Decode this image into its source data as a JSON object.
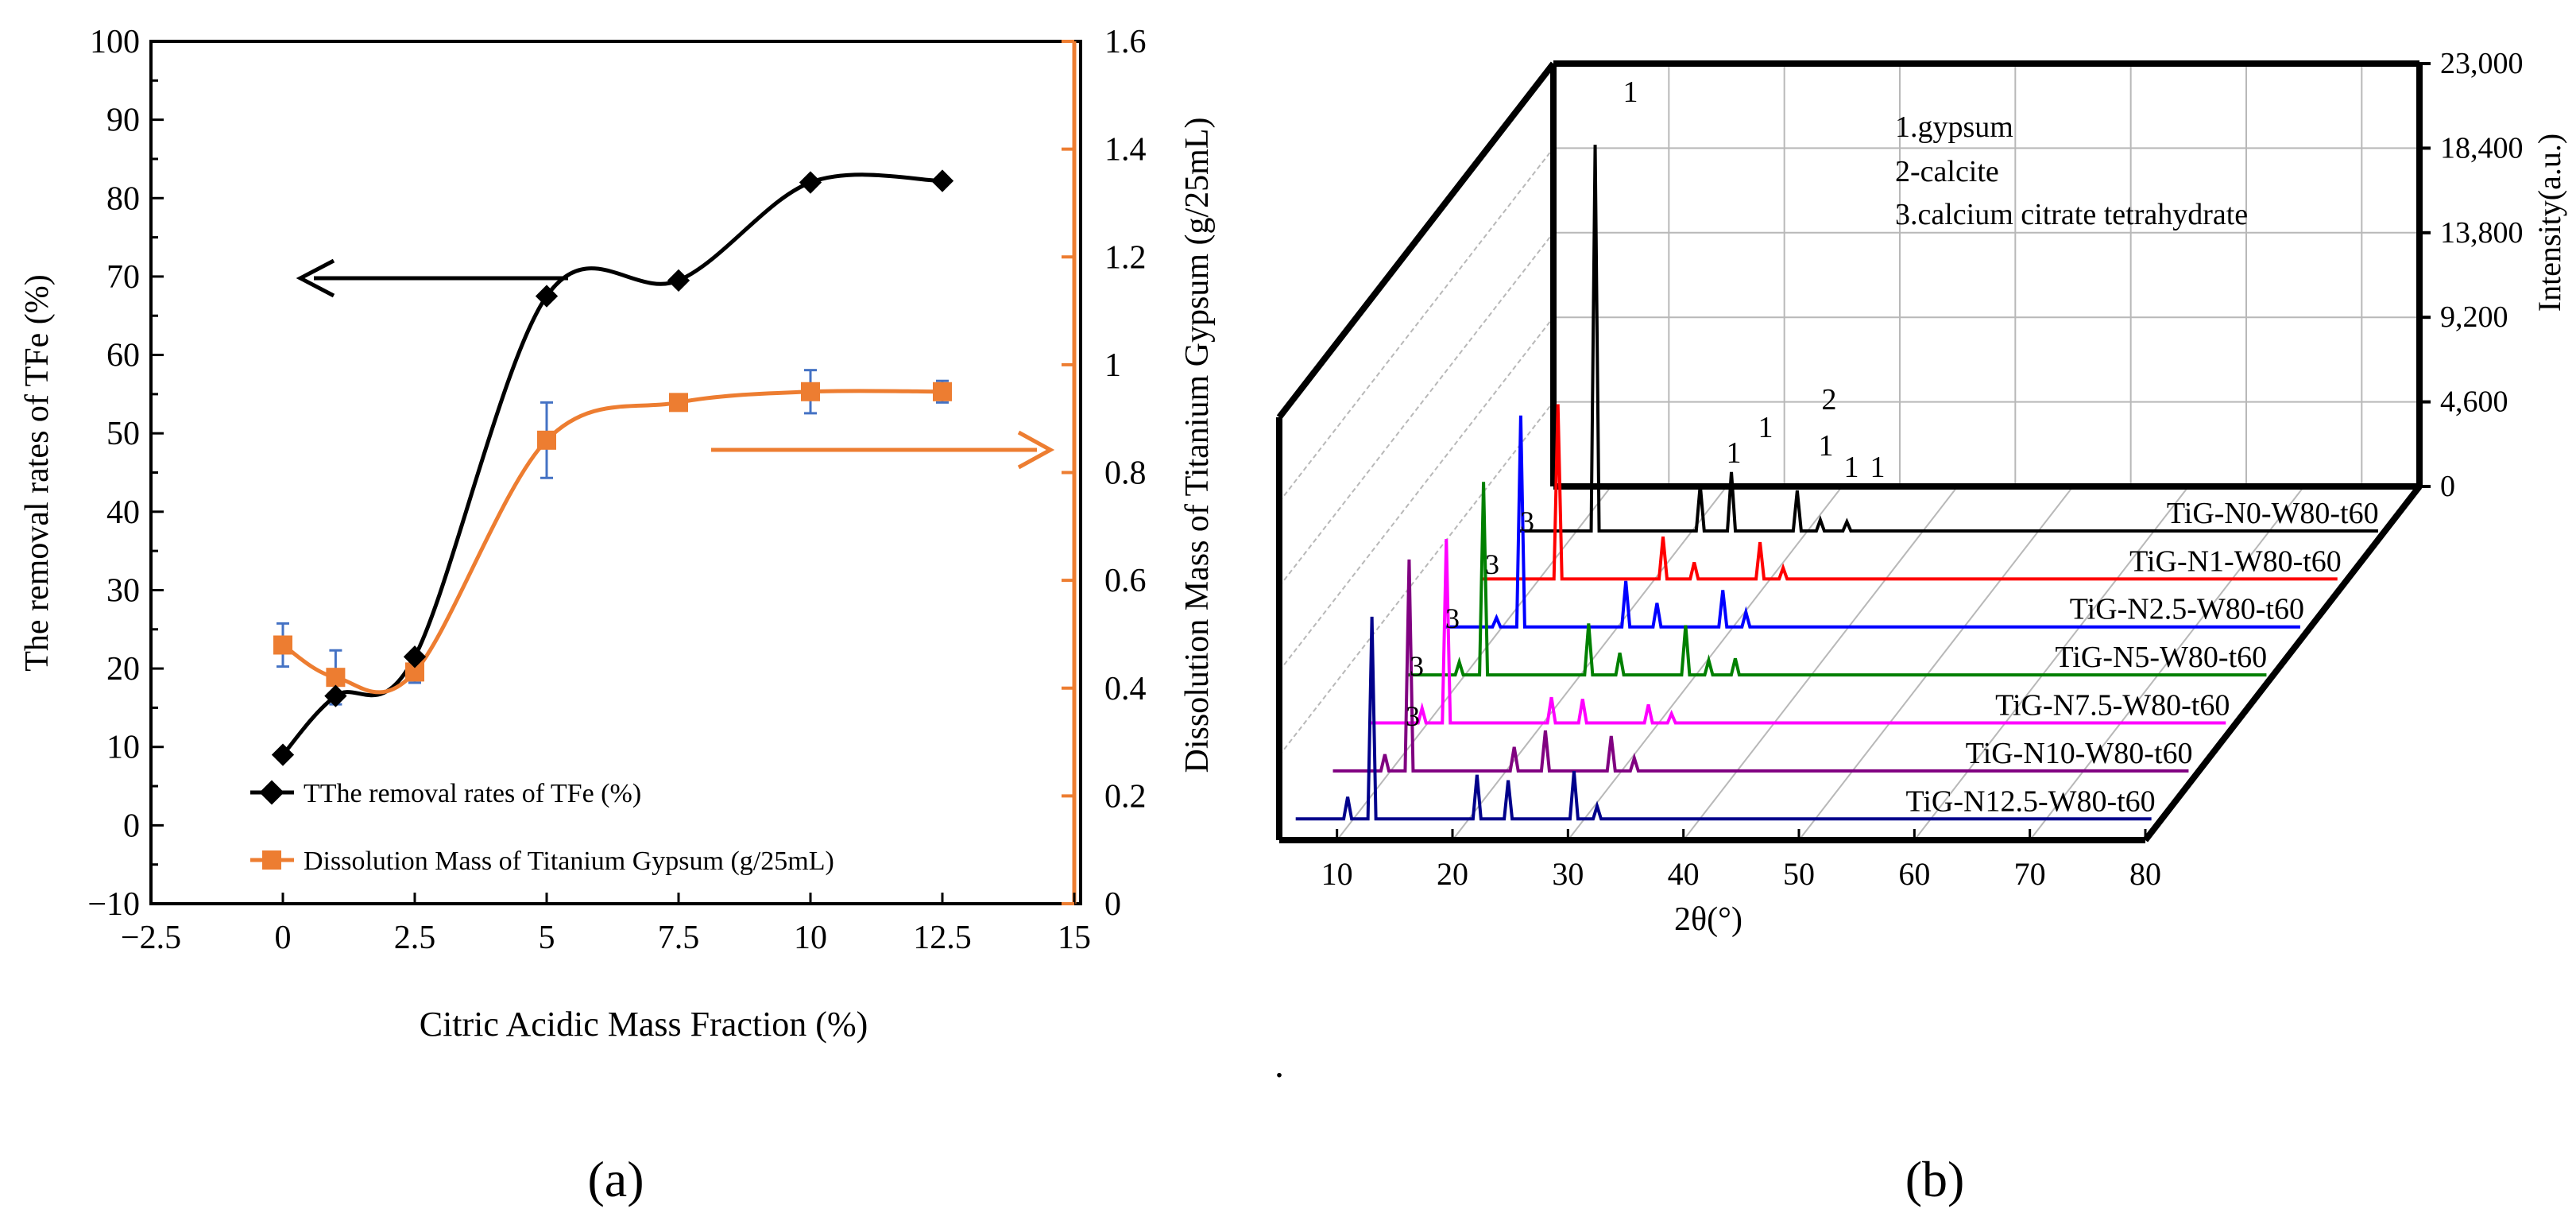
{
  "chart_data": [
    {
      "type": "line",
      "panel_label": "(a)",
      "title": "",
      "xlabel": "Citric Acidic Mass Fraction (%)",
      "ylabel": "The removal rates of  TFe (%)",
      "y2label": "Dissolution Mass of Titanium Gypsum (g/25mL)",
      "xlim": [
        -2.5,
        15
      ],
      "ylim": [
        -10,
        100
      ],
      "y2lim": [
        0,
        1.6
      ],
      "x_ticks": [
        "−2.5",
        "0",
        "2.5",
        "5",
        "7.5",
        "10",
        "12.5",
        "15"
      ],
      "y_ticks": [
        "−10",
        "0",
        "10",
        "20",
        "30",
        "40",
        "50",
        "60",
        "70",
        "80",
        "90",
        "100"
      ],
      "y2_ticks": [
        "0",
        "0.2",
        "0.4",
        "0.6",
        "0.8",
        "1",
        "1.2",
        "1.4",
        "1.6"
      ],
      "legend_position": "bottom-left",
      "series": [
        {
          "name": "TThe removal rates of  TFe (%)",
          "axis": "left",
          "color": "#000000",
          "marker": "diamond",
          "x": [
            0,
            1,
            2.5,
            5,
            7.5,
            10,
            12.5
          ],
          "values": [
            9,
            16.5,
            21.5,
            67.5,
            69.5,
            82,
            82.2
          ]
        },
        {
          "name": "Dissolution Mass of Titanium Gypsum (g/25mL)",
          "axis": "right",
          "color": "#ED7D31",
          "marker": "square",
          "x": [
            0,
            1,
            2.5,
            5,
            7.5,
            10,
            12.5
          ],
          "values": [
            0.48,
            0.42,
            0.43,
            0.86,
            0.93,
            0.95,
            0.95
          ],
          "error": [
            0.04,
            0.05,
            0.02,
            0.07,
            0.015,
            0.04,
            0.02
          ],
          "error_color": "#4472C4"
        }
      ],
      "annotations": [
        "arrow pointing left to the removal-rate axis",
        "arrow pointing right to the dissolution-mass axis"
      ]
    },
    {
      "type": "line",
      "subtype": "waterfall-3d",
      "panel_label": "(b)",
      "title": "",
      "xlabel": "2θ(°)",
      "zlabel": "Intensity(a.u.)",
      "xlim": [
        5,
        80
      ],
      "zlim": [
        0,
        23000
      ],
      "x_ticks": [
        "10",
        "20",
        "30",
        "40",
        "50",
        "60",
        "70",
        "80"
      ],
      "z_ticks": [
        "0",
        "4,600",
        "9,200",
        "13,800",
        "18,400",
        "23,000"
      ],
      "legend_text": [
        "1.gypsum",
        "2-calcite",
        "3.calcium citrate tetrahydrate"
      ],
      "peak_labels_top": [
        "1",
        "1",
        "1",
        "2",
        "1",
        "1",
        "1"
      ],
      "peak_labels_3": [
        "3",
        "3",
        "3",
        "3",
        "3"
      ],
      "dot_text": ".",
      "peaks_2theta": [
        11.6,
        20.7,
        23.4,
        29.1,
        31.1,
        33.4,
        36.0
      ],
      "series": [
        {
          "name": "TiG-N0-W80-t60",
          "color": "#000000",
          "peaks": [
            [
              11.6,
              21000
            ],
            [
              20.7,
              2500
            ],
            [
              23.4,
              3200
            ],
            [
              29.1,
              2200
            ],
            [
              31.1,
              600
            ],
            [
              33.4,
              500
            ]
          ]
        },
        {
          "name": "TiG-N1-W80-t60",
          "color": "#FF0000",
          "peaks": [
            [
              11.6,
              9500
            ],
            [
              20.7,
              2300
            ],
            [
              23.4,
              900
            ],
            [
              29.1,
              2000
            ],
            [
              31.1,
              600
            ]
          ]
        },
        {
          "name": "TiG-N2.5-W80-t60",
          "color": "#0000FF",
          "peaks": [
            [
              9.5,
              500
            ],
            [
              11.6,
              11500
            ],
            [
              20.7,
              2500
            ],
            [
              23.4,
              1300
            ],
            [
              29.1,
              2000
            ],
            [
              31.1,
              800
            ]
          ]
        },
        {
          "name": "TiG-N5-W80-t60",
          "color": "#008000",
          "peaks": [
            [
              9.5,
              700
            ],
            [
              11.6,
              10500
            ],
            [
              20.7,
              2800
            ],
            [
              23.4,
              1200
            ],
            [
              29.1,
              2700
            ],
            [
              31.1,
              800
            ],
            [
              33.4,
              900
            ]
          ]
        },
        {
          "name": "TiG-N7.5-W80-t60",
          "color": "#FF00FF",
          "peaks": [
            [
              9.5,
              800
            ],
            [
              11.6,
              10000
            ],
            [
              20.7,
              1400
            ],
            [
              23.4,
              1300
            ],
            [
              29.1,
              1000
            ],
            [
              31.1,
              500
            ]
          ]
        },
        {
          "name": "TiG-N10-W80-t60",
          "color": "#800080",
          "peaks": [
            [
              9.5,
              900
            ],
            [
              11.6,
              11500
            ],
            [
              20.7,
              1300
            ],
            [
              23.4,
              2200
            ],
            [
              29.1,
              1900
            ],
            [
              31.1,
              700
            ]
          ]
        },
        {
          "name": "TiG-N12.5-W80-t60",
          "color": "#00008B",
          "peaks": [
            [
              9.5,
              1200
            ],
            [
              11.6,
              11000
            ],
            [
              20.7,
              2400
            ],
            [
              23.4,
              2100
            ],
            [
              29.1,
              2600
            ],
            [
              31.1,
              700
            ]
          ]
        }
      ]
    }
  ]
}
